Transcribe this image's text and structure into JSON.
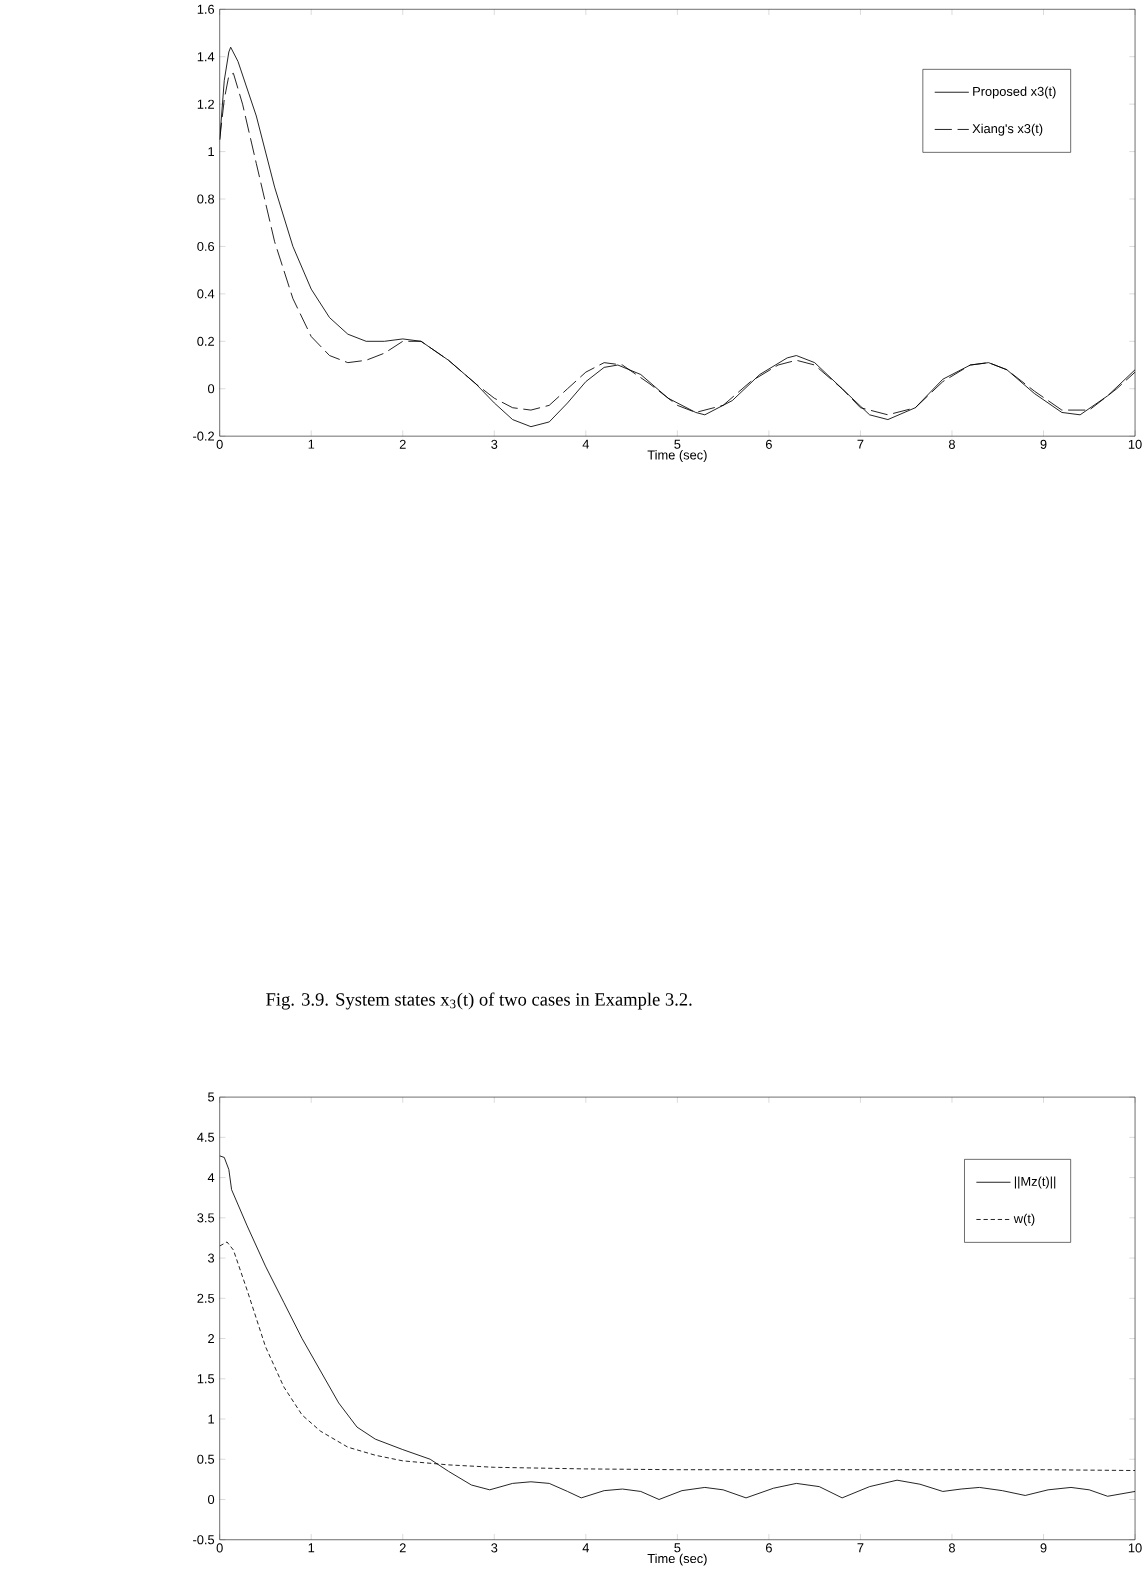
{
  "chart_data": [
    {
      "type": "line",
      "xlabel": "Time (sec)",
      "xlim": [
        0,
        10
      ],
      "ylim": [
        -0.2,
        1.6
      ],
      "xticks": [
        0,
        1,
        2,
        3,
        4,
        5,
        6,
        7,
        8,
        9,
        10
      ],
      "yticks": [
        -0.2,
        0,
        0.2,
        0.4,
        0.6,
        0.8,
        1,
        1.2,
        1.4,
        1.6
      ],
      "grid": false,
      "legend": "top right",
      "marker": "none",
      "annotations": [
        "Fig. 3.9. System states x$_{3}$(t) of two cases in Example 3.2."
      ],
      "series": [
        {
          "name": "Proposed x3(t)",
          "color": "#000000",
          "line_style": "solid",
          "x": [
            0,
            0.05,
            0.1,
            0.12,
            0.2,
            0.4,
            0.6,
            0.8,
            1.0,
            1.2,
            1.4,
            1.6,
            1.8,
            2.0,
            2.2,
            2.5,
            2.8,
            3.0,
            3.2,
            3.4,
            3.6,
            3.8,
            4.0,
            4.2,
            4.35,
            4.6,
            4.9,
            5.2,
            5.3,
            5.6,
            5.9,
            6.2,
            6.3,
            6.5,
            6.8,
            7.1,
            7.3,
            7.6,
            7.9,
            8.2,
            8.4,
            8.6,
            8.9,
            9.2,
            9.4,
            9.7,
            10
          ],
          "values": [
            1.05,
            1.3,
            1.42,
            1.44,
            1.38,
            1.15,
            0.85,
            0.6,
            0.42,
            0.3,
            0.23,
            0.2,
            0.2,
            0.21,
            0.2,
            0.12,
            0.02,
            -0.06,
            -0.13,
            -0.16,
            -0.14,
            -0.06,
            0.03,
            0.09,
            0.1,
            0.06,
            -0.04,
            -0.1,
            -0.11,
            -0.05,
            0.06,
            0.13,
            0.14,
            0.11,
            0.0,
            -0.11,
            -0.13,
            -0.08,
            0.04,
            0.1,
            0.11,
            0.08,
            -0.02,
            -0.1,
            -0.11,
            -0.03,
            0.08
          ]
        },
        {
          "name": "Xiang's x3(t)",
          "color": "#000000",
          "line_style": "dashed",
          "x": [
            0,
            0.05,
            0.1,
            0.15,
            0.25,
            0.4,
            0.6,
            0.8,
            1.0,
            1.2,
            1.4,
            1.6,
            1.8,
            2.0,
            2.2,
            2.5,
            2.8,
            3.0,
            3.2,
            3.4,
            3.6,
            3.8,
            4.0,
            4.2,
            4.4,
            4.7,
            5.0,
            5.2,
            5.5,
            5.8,
            6.1,
            6.3,
            6.5,
            6.8,
            7.0,
            7.3,
            7.6,
            7.9,
            8.2,
            8.4,
            8.6,
            8.9,
            9.2,
            9.5,
            9.8,
            10
          ],
          "values": [
            1.05,
            1.22,
            1.32,
            1.33,
            1.2,
            0.95,
            0.62,
            0.38,
            0.22,
            0.14,
            0.11,
            0.12,
            0.15,
            0.2,
            0.2,
            0.12,
            0.02,
            -0.04,
            -0.08,
            -0.09,
            -0.07,
            0.0,
            0.07,
            0.11,
            0.1,
            0.02,
            -0.07,
            -0.1,
            -0.07,
            0.03,
            0.1,
            0.12,
            0.1,
            0.0,
            -0.08,
            -0.11,
            -0.08,
            0.03,
            0.1,
            0.11,
            0.08,
            -0.01,
            -0.09,
            -0.09,
            0.0,
            0.07
          ]
        }
      ]
    },
    {
      "type": "line",
      "xlabel": "Time (sec)",
      "xlim": [
        0,
        10
      ],
      "ylim": [
        -0.5,
        5
      ],
      "xticks": [
        0,
        1,
        2,
        3,
        4,
        5,
        6,
        7,
        8,
        9,
        10
      ],
      "yticks": [
        -0.5,
        0,
        0.5,
        1,
        1.5,
        2,
        2.5,
        3,
        3.5,
        4,
        4.5,
        5
      ],
      "grid": false,
      "legend": "top right",
      "marker": "none",
      "series": [
        {
          "name": "||Mz(t)||",
          "color": "#000000",
          "line_style": "solid",
          "x": [
            0,
            0.05,
            0.1,
            0.13,
            0.3,
            0.5,
            0.7,
            0.9,
            1.1,
            1.3,
            1.5,
            1.7,
            2.0,
            2.3,
            2.5,
            2.75,
            2.95,
            3.2,
            3.4,
            3.6,
            3.8,
            3.95,
            4.2,
            4.4,
            4.6,
            4.8,
            5.05,
            5.3,
            5.5,
            5.75,
            6.05,
            6.3,
            6.55,
            6.8,
            7.1,
            7.4,
            7.65,
            7.9,
            8.1,
            8.3,
            8.55,
            8.8,
            9.05,
            9.3,
            9.5,
            9.7,
            10
          ],
          "values": [
            4.27,
            4.25,
            4.1,
            3.85,
            3.4,
            2.9,
            2.45,
            2.0,
            1.6,
            1.2,
            0.9,
            0.75,
            0.62,
            0.5,
            0.35,
            0.18,
            0.12,
            0.2,
            0.22,
            0.2,
            0.1,
            0.02,
            0.11,
            0.13,
            0.1,
            0.0,
            0.11,
            0.15,
            0.12,
            0.02,
            0.14,
            0.2,
            0.16,
            0.02,
            0.16,
            0.24,
            0.19,
            0.1,
            0.13,
            0.15,
            0.11,
            0.05,
            0.12,
            0.15,
            0.12,
            0.04,
            0.1
          ]
        },
        {
          "name": "w(t)",
          "color": "#000000",
          "line_style": "dashed",
          "x": [
            0,
            0.08,
            0.15,
            0.3,
            0.5,
            0.7,
            0.9,
            1.1,
            1.4,
            1.7,
            2.0,
            2.5,
            3.0,
            4.0,
            5.0,
            6.0,
            7.0,
            8.0,
            9.0,
            10
          ],
          "values": [
            3.15,
            3.2,
            3.1,
            2.6,
            1.9,
            1.4,
            1.05,
            0.85,
            0.65,
            0.55,
            0.48,
            0.43,
            0.4,
            0.38,
            0.37,
            0.37,
            0.37,
            0.37,
            0.37,
            0.36
          ]
        }
      ]
    }
  ]
}
